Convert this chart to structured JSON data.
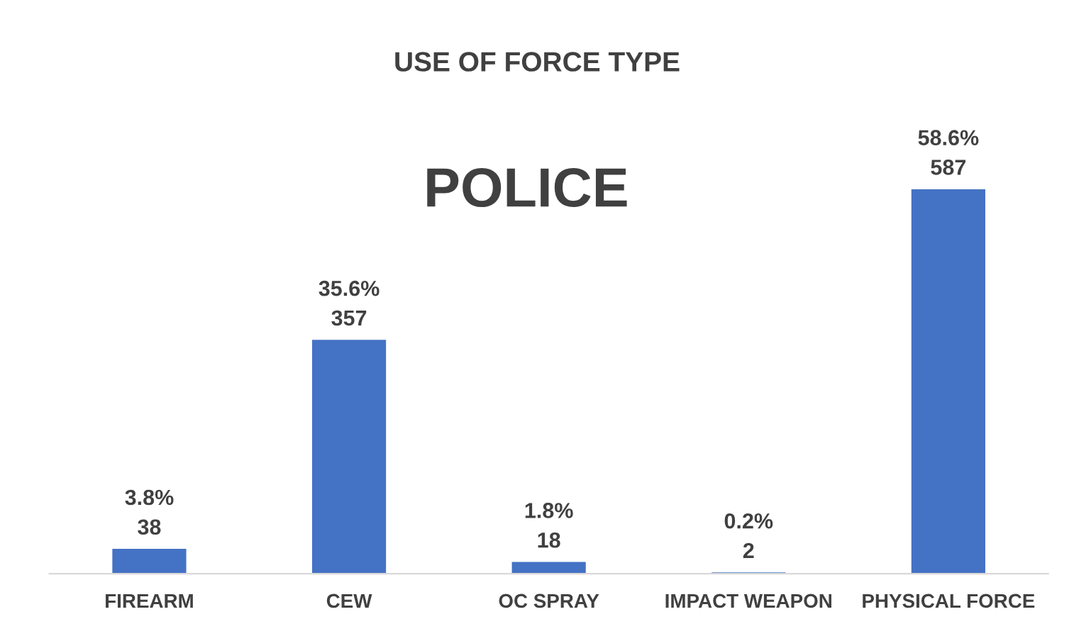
{
  "chart_data": {
    "type": "bar",
    "title": "USE OF FORCE TYPE",
    "subtitle": "POLICE",
    "categories": [
      "FIREARM",
      "CEW",
      "OC SPRAY",
      "IMPACT WEAPON",
      "PHYSICAL FORCE"
    ],
    "values": [
      38,
      357,
      18,
      2,
      587
    ],
    "value_labels": [
      "3.8%\n38",
      "35.6%\n357",
      "1.8%\n18",
      "0.2%\n2",
      "58.6%\n587"
    ],
    "color": "#4472c4"
  }
}
